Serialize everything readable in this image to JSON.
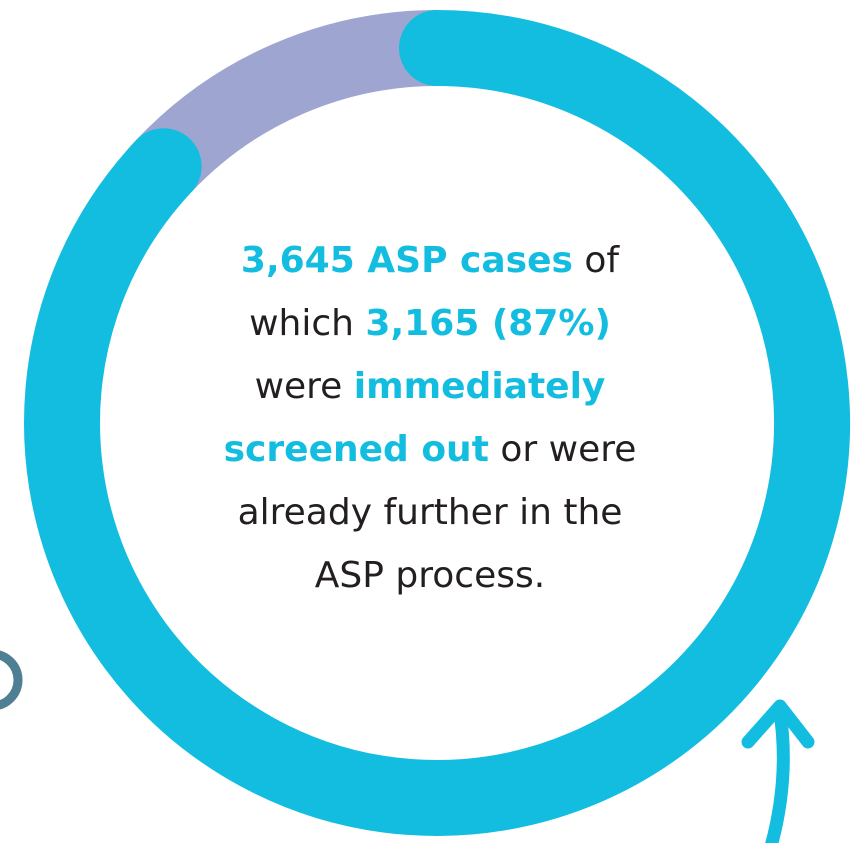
{
  "chart_data": {
    "type": "pie",
    "values": [
      87,
      13
    ],
    "colors": [
      "#13bde0",
      "#9fa5d1"
    ],
    "annotation": [
      [
        {
          "text": "3,645 ASP cases",
          "emphasis": true
        },
        {
          "text": " of",
          "emphasis": false
        }
      ],
      [
        {
          "text": "which ",
          "emphasis": false
        },
        {
          "text": "3,165 (87%)",
          "emphasis": true
        }
      ],
      [
        {
          "text": "were ",
          "emphasis": false
        },
        {
          "text": "immediately",
          "emphasis": true
        }
      ],
      [
        {
          "text": "screened out",
          "emphasis": true
        },
        {
          "text": " or were",
          "emphasis": false
        }
      ],
      [
        {
          "text": "already further in the",
          "emphasis": false
        }
      ],
      [
        {
          "text": "ASP process.",
          "emphasis": false
        }
      ]
    ]
  }
}
